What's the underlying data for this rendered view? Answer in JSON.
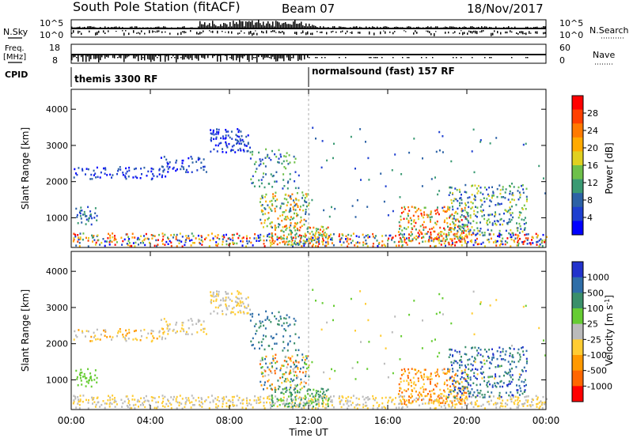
{
  "header": {
    "title": "South Pole Station (fitACF)",
    "beam": "Beam 07",
    "date": "18/Nov/2017"
  },
  "top_panels": {
    "noise": {
      "left_label": "N.Sky",
      "right_label": "N.Search",
      "left_ticks": [
        "10^5",
        "10^0"
      ],
      "right_ticks": [
        "10^5",
        "10^0"
      ]
    },
    "freq": {
      "left_label_1": "Freq.",
      "left_label_2": "[MHz]",
      "right_label": "Nave",
      "left_ticks": [
        "18",
        "8"
      ],
      "right_ticks": [
        "60",
        "0"
      ]
    },
    "cpid": {
      "label": "CPID",
      "mode1": "themis 3300 RF",
      "mode2": "normalsound (fast) 157 RF"
    }
  },
  "chart_data": [
    {
      "type": "heatmap",
      "name": "power",
      "ylabel": "Slant Range [km]",
      "ylim": [
        180,
        4550
      ],
      "yticks": [
        "1000",
        "2000",
        "3000",
        "4000"
      ],
      "xlim": [
        0,
        24
      ],
      "xticks": [
        "00:00",
        "04:00",
        "08:00",
        "12:00",
        "16:00",
        "20:00",
        "00:00"
      ],
      "colorbar_label": "Power [dB]",
      "colorbar_ticks": [
        "4",
        "8",
        "12",
        "16",
        "20",
        "24",
        "28"
      ],
      "colorbar_colors": [
        "#0000ff",
        "#1e3fd0",
        "#2c62a6",
        "#3a9a73",
        "#6ec04a",
        "#e0d020",
        "#ffaa00",
        "#ff7a00",
        "#ff4000",
        "#ff0000"
      ]
    },
    {
      "type": "heatmap",
      "name": "velocity",
      "ylabel": "Slant Range [km]",
      "ylim": [
        180,
        4550
      ],
      "yticks": [
        "1000",
        "2000",
        "3000",
        "4000"
      ],
      "xlim": [
        0,
        24
      ],
      "xticks": [
        "00:00",
        "04:00",
        "08:00",
        "12:00",
        "16:00",
        "20:00",
        "00:00"
      ],
      "xlabel": "Time UT",
      "colorbar_label": "Velocity [m s^-1]",
      "colorbar_ticks": [
        "1000",
        "500",
        "100",
        "25",
        "-25",
        "-100",
        "-500",
        "-1000"
      ],
      "colorbar_colors": [
        "#2233cc",
        "#2f6ea8",
        "#3a8f6a",
        "#66cc33",
        "#bbbbbb",
        "#ffcc33",
        "#ff9900",
        "#ff6600",
        "#ff0000"
      ]
    }
  ]
}
